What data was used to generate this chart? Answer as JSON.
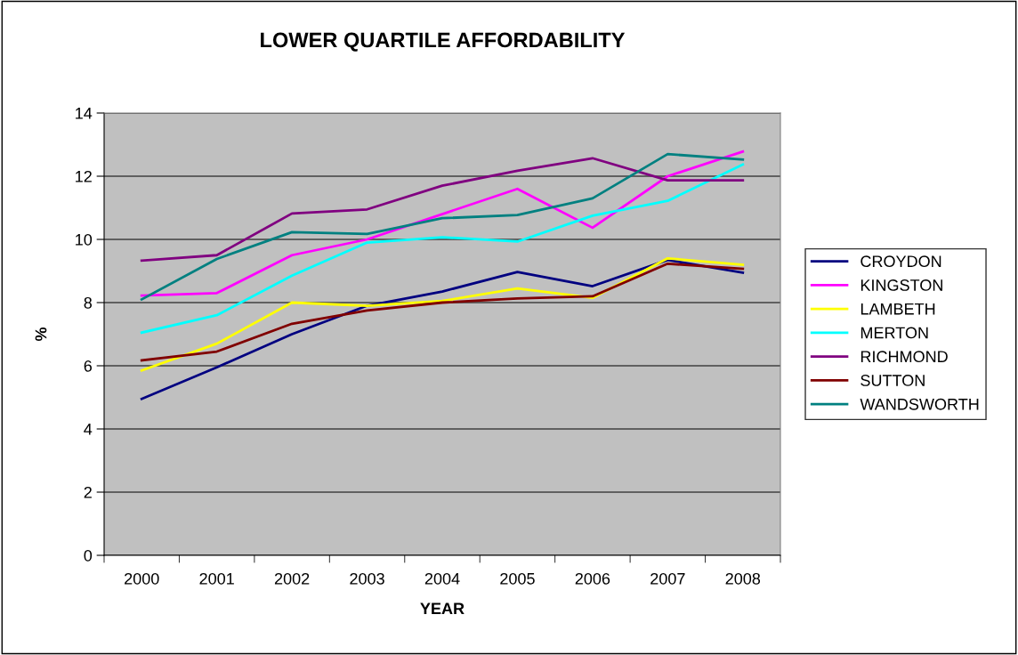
{
  "chart_data": {
    "type": "line",
    "title": "LOWER QUARTILE AFFORDABILITY",
    "xlabel": "YEAR",
    "ylabel": "%",
    "categories": [
      "2000",
      "2001",
      "2002",
      "2003",
      "2004",
      "2005",
      "2006",
      "2007",
      "2008"
    ],
    "ylim": [
      0,
      14
    ],
    "yticks": [
      0,
      2,
      4,
      6,
      8,
      10,
      12,
      14
    ],
    "grid": "y",
    "legend": "right",
    "marker": "none",
    "line_style": "solid",
    "series": [
      {
        "name": "CROYDON",
        "color": "#000080",
        "values": [
          4.95,
          5.95,
          7.0,
          7.9,
          8.35,
          8.97,
          8.52,
          9.35,
          8.95
        ]
      },
      {
        "name": "KINGSTON",
        "color": "#ff00ff",
        "values": [
          8.22,
          8.3,
          9.5,
          10.0,
          10.8,
          11.6,
          10.37,
          12.0,
          12.78
        ]
      },
      {
        "name": "LAMBETH",
        "color": "#ffff00",
        "values": [
          5.85,
          6.7,
          8.0,
          7.9,
          8.05,
          8.45,
          8.15,
          9.4,
          9.2
        ]
      },
      {
        "name": "MERTON",
        "color": "#00ffff",
        "values": [
          7.05,
          7.6,
          8.85,
          9.9,
          10.07,
          9.93,
          10.75,
          11.22,
          12.37
        ]
      },
      {
        "name": "RICHMOND",
        "color": "#800080",
        "values": [
          9.33,
          9.5,
          10.82,
          10.95,
          11.7,
          12.17,
          12.57,
          11.87,
          11.87
        ]
      },
      {
        "name": "SUTTON",
        "color": "#800000",
        "values": [
          6.17,
          6.45,
          7.33,
          7.75,
          8.0,
          8.13,
          8.2,
          9.23,
          9.07
        ]
      },
      {
        "name": "WANDSWORTH",
        "color": "#008080",
        "values": [
          8.1,
          9.38,
          10.23,
          10.17,
          10.67,
          10.77,
          11.3,
          12.7,
          12.53
        ]
      }
    ]
  }
}
